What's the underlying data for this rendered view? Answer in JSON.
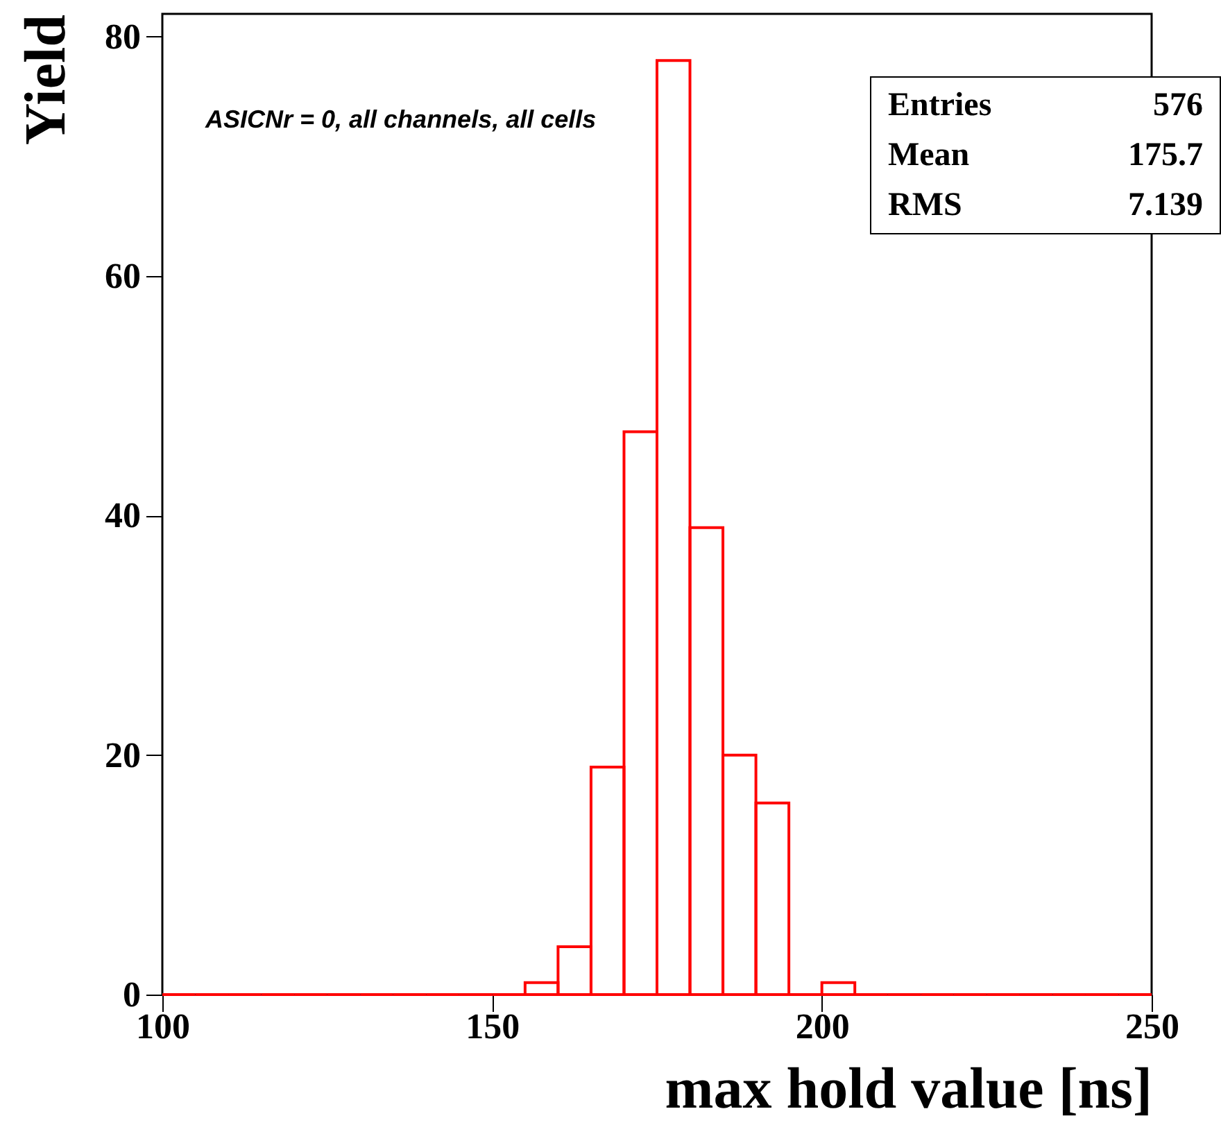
{
  "chart_data": {
    "type": "histogram",
    "color": "#ff0000",
    "bins": [
      100,
      105,
      110,
      115,
      120,
      125,
      130,
      135,
      140,
      145,
      150,
      155,
      160,
      165,
      170,
      175,
      180,
      185,
      190,
      195,
      200,
      205,
      210,
      215,
      220,
      225,
      230,
      235,
      240,
      245,
      250
    ],
    "values": [
      0,
      0,
      0,
      0,
      0,
      0,
      0,
      0,
      0,
      0,
      0,
      1,
      4,
      19,
      47,
      78,
      39,
      20,
      16,
      0,
      1,
      0,
      0,
      0,
      0,
      0,
      0,
      0,
      0,
      0
    ],
    "xlim": [
      100,
      250
    ],
    "xticks": [
      100,
      150,
      200,
      250
    ],
    "ylim": [
      0,
      81.9
    ],
    "yticks": [
      0,
      20,
      40,
      60,
      80
    ],
    "xlabel": "max hold value [ns]",
    "ylabel": "Yield",
    "grid": false,
    "annotations": [
      "ASICNr = 0, all channels, all cells",
      "Entries",
      "576",
      "Mean",
      "175.7",
      "RMS",
      "7.139"
    ]
  }
}
